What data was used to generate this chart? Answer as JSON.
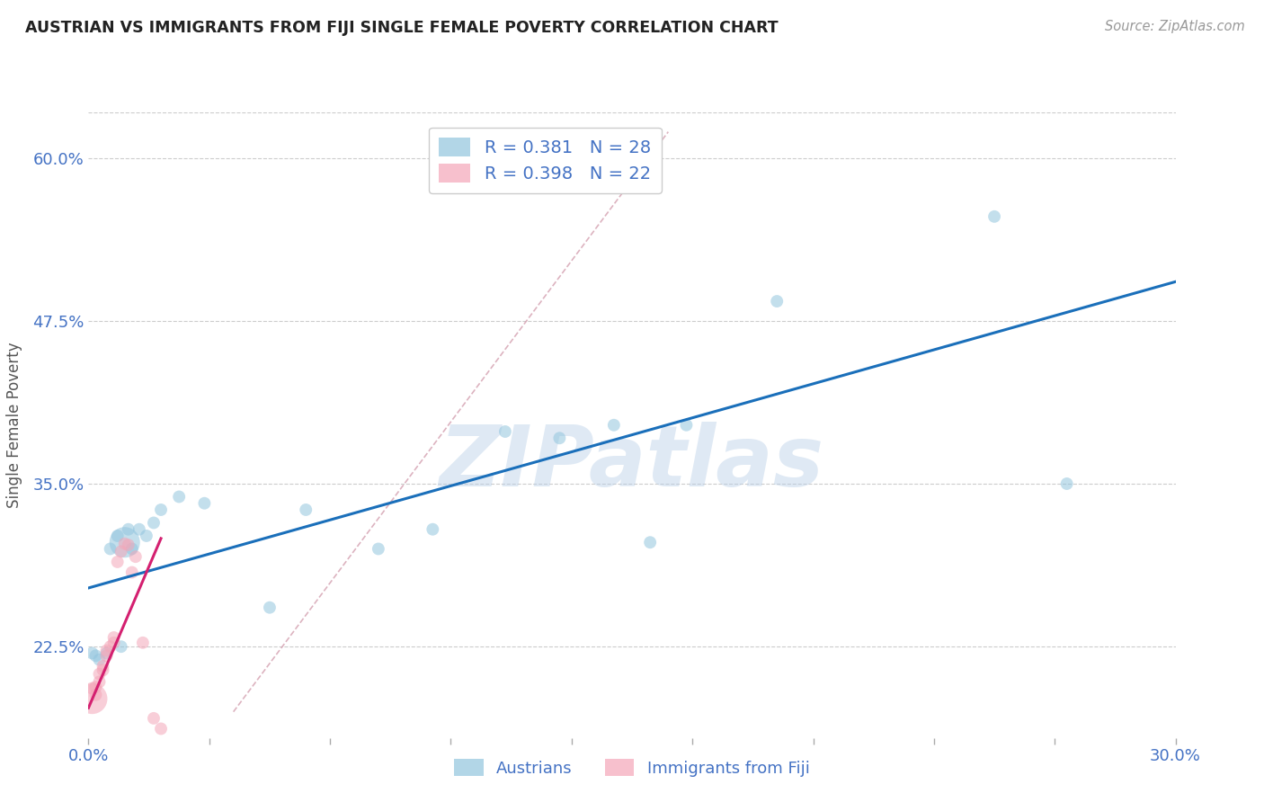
{
  "title": "AUSTRIAN VS IMMIGRANTS FROM FIJI SINGLE FEMALE POVERTY CORRELATION CHART",
  "source": "Source: ZipAtlas.com",
  "xlabel_label": "Austrians",
  "ylabel_label": "Single Female Poverty",
  "xlabel2_label": "Immigrants from Fiji",
  "legend_r1": "R = 0.381",
  "legend_n1": "N = 28",
  "legend_r2": "R = 0.398",
  "legend_n2": "N = 22",
  "watermark": "ZIPatlas",
  "blue_color": "#92c5de",
  "pink_color": "#f4a6b8",
  "blue_line_color": "#1a6fba",
  "pink_line_color": "#d42070",
  "background_color": "#ffffff",
  "grid_color": "#cccccc",
  "title_color": "#222222",
  "axis_label_color": "#555555",
  "tick_color": "#4472c4",
  "x_min": 0.0,
  "x_max": 0.3,
  "y_min": 0.155,
  "y_max": 0.635,
  "austrians_x": [
    0.001,
    0.002,
    0.003,
    0.005,
    0.006,
    0.008,
    0.009,
    0.01,
    0.011,
    0.012,
    0.014,
    0.016,
    0.018,
    0.02,
    0.025,
    0.032,
    0.05,
    0.06,
    0.08,
    0.095,
    0.115,
    0.13,
    0.145,
    0.155,
    0.165,
    0.19,
    0.25,
    0.27
  ],
  "austrians_y": [
    0.22,
    0.218,
    0.215,
    0.22,
    0.3,
    0.31,
    0.225,
    0.305,
    0.315,
    0.3,
    0.315,
    0.31,
    0.32,
    0.33,
    0.34,
    0.335,
    0.255,
    0.33,
    0.3,
    0.315,
    0.39,
    0.385,
    0.395,
    0.305,
    0.395,
    0.49,
    0.555,
    0.35
  ],
  "austrians_size_raw": [
    1,
    1,
    1,
    1,
    1,
    1,
    1,
    8,
    1,
    1,
    1,
    1,
    1,
    1,
    1,
    1,
    1,
    1,
    1,
    1,
    1,
    1,
    1,
    1,
    1,
    1,
    1,
    1
  ],
  "fiji_x": [
    0.001,
    0.001,
    0.002,
    0.002,
    0.003,
    0.003,
    0.004,
    0.004,
    0.005,
    0.005,
    0.006,
    0.007,
    0.007,
    0.008,
    0.009,
    0.01,
    0.011,
    0.012,
    0.013,
    0.015,
    0.018,
    0.02
  ],
  "fiji_y": [
    0.185,
    0.193,
    0.188,
    0.194,
    0.198,
    0.204,
    0.207,
    0.21,
    0.218,
    0.222,
    0.225,
    0.228,
    0.232,
    0.29,
    0.298,
    0.304,
    0.303,
    0.282,
    0.294,
    0.228,
    0.17,
    0.162
  ],
  "fiji_size_raw": [
    8,
    1,
    1,
    1,
    1,
    1,
    1,
    1,
    1,
    1,
    1,
    1,
    1,
    1,
    1,
    1,
    1,
    1,
    1,
    1,
    1,
    1
  ],
  "blue_trendline_x": [
    0.0,
    0.3
  ],
  "blue_trendline_y": [
    0.27,
    0.505
  ],
  "pink_trendline_x": [
    0.0,
    0.02
  ],
  "pink_trendline_y": [
    0.178,
    0.308
  ],
  "dashed_trendline_x": [
    0.04,
    0.16
  ],
  "dashed_trendline_y": [
    0.175,
    0.62
  ]
}
